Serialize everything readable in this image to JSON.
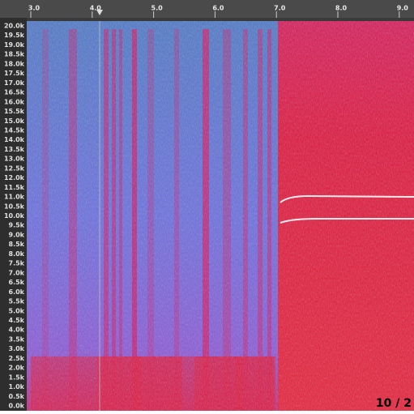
{
  "ruler": {
    "ticks": [
      "3.0",
      "4.0",
      "5.0",
      "6.0",
      "7.0",
      "8.0",
      "9.0"
    ]
  },
  "frequency_axis": {
    "labels": [
      "20.0k",
      "19.5k",
      "19.0k",
      "18.5k",
      "18.0k",
      "17.5k",
      "17.0k",
      "16.5k",
      "16.0k",
      "15.5k",
      "15.0k",
      "14.5k",
      "14.0k",
      "13.5k",
      "13.0k",
      "12.5k",
      "12.0k",
      "11.5k",
      "11.0k",
      "10.5k",
      "10.0k",
      "9.5k",
      "9.0k",
      "8.5k",
      "8.0k",
      "7.5k",
      "7.0k",
      "6.5k",
      "6.0k",
      "5.5k",
      "5.0k",
      "4.5k",
      "4.0k",
      "3.5k",
      "3.0k",
      "2.5k",
      "2.0k",
      "1.5k",
      "1.0k",
      "0.5k",
      "0.0k"
    ]
  },
  "page_indicator": "10 / 2"
}
